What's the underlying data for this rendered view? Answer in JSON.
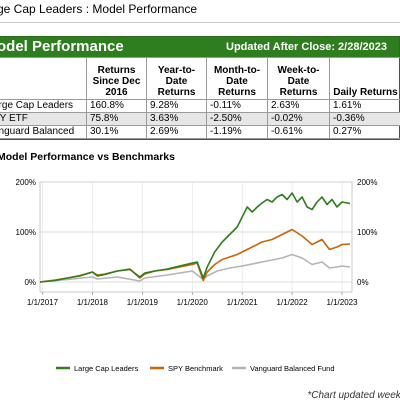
{
  "breadcrumb": "ge Cap Leaders : Model Performance",
  "performance": {
    "title": "odel Performance",
    "updated": "Updated After Close:  2/28/2023",
    "headers": [
      "",
      "Returns Since Dec 2016",
      "Year-to-Date Returns",
      "Month-to-Date Returns",
      "Week-to-Date Returns",
      "Daily Returns"
    ],
    "rows": [
      {
        "name": "arge Cap Leaders",
        "values": [
          "160.8%",
          "9.28%",
          "-0.11%",
          "2.63%",
          "1.61%"
        ]
      },
      {
        "name": "PY ETF",
        "values": [
          "75.8%",
          "3.63%",
          "-2.50%",
          "-0.02%",
          "-0.36%"
        ]
      },
      {
        "name": "anguard Balanced",
        "values": [
          "30.1%",
          "2.69%",
          "-1.19%",
          "-0.61%",
          "0.27%"
        ]
      }
    ]
  },
  "chart_title": "Model Performance vs Benchmarks",
  "footnote": "*Chart updated weekly",
  "chart_data": {
    "type": "line",
    "x_ticks": [
      "1/1/2017",
      "1/1/2018",
      "1/1/2019",
      "1/1/2020",
      "1/1/2021",
      "1/1/2022",
      "1/1/2023"
    ],
    "y_ticks": [
      "0%",
      "100%",
      "200%"
    ],
    "ylim": [
      -20,
      200
    ],
    "grid": true,
    "legend_position": "bottom",
    "series": [
      {
        "name": "Large Cap Leaders",
        "color": "#2e7d1e",
        "x": [
          2016.95,
          2017.25,
          2017.5,
          2017.75,
          2018.0,
          2018.1,
          2018.25,
          2018.5,
          2018.75,
          2018.95,
          2019.05,
          2019.25,
          2019.5,
          2019.75,
          2020.0,
          2020.1,
          2020.22,
          2020.3,
          2020.45,
          2020.6,
          2020.75,
          2020.9,
          2021.0,
          2021.1,
          2021.2,
          2021.3,
          2021.4,
          2021.5,
          2021.6,
          2021.7,
          2021.8,
          2021.9,
          2022.0,
          2022.1,
          2022.2,
          2022.3,
          2022.4,
          2022.5,
          2022.6,
          2022.7,
          2022.8,
          2022.9,
          2023.0,
          2023.16
        ],
        "y": [
          0,
          3,
          8,
          12,
          20,
          12,
          15,
          22,
          25,
          10,
          18,
          22,
          26,
          32,
          38,
          40,
          8,
          30,
          60,
          80,
          95,
          110,
          130,
          150,
          140,
          150,
          158,
          165,
          160,
          170,
          175,
          165,
          178,
          160,
          170,
          150,
          145,
          160,
          170,
          155,
          165,
          150,
          160,
          157
        ]
      },
      {
        "name": "SPY Benchmark",
        "color": "#c8640a",
        "x": [
          2016.95,
          2017.25,
          2017.5,
          2017.75,
          2018.0,
          2018.1,
          2018.25,
          2018.5,
          2018.75,
          2018.95,
          2019.05,
          2019.25,
          2019.5,
          2019.75,
          2020.0,
          2020.1,
          2020.22,
          2020.3,
          2020.45,
          2020.6,
          2020.75,
          2020.9,
          2021.0,
          2021.2,
          2021.4,
          2021.6,
          2021.8,
          2022.0,
          2022.2,
          2022.4,
          2022.5,
          2022.6,
          2022.75,
          2022.9,
          2023.0,
          2023.16
        ],
        "y": [
          0,
          4,
          8,
          13,
          20,
          14,
          16,
          22,
          26,
          8,
          16,
          22,
          25,
          30,
          35,
          38,
          3,
          20,
          35,
          45,
          50,
          55,
          60,
          70,
          80,
          85,
          95,
          105,
          92,
          75,
          80,
          85,
          65,
          70,
          75,
          76
        ]
      },
      {
        "name": "Vanguard Balanced Fund",
        "color": "#b4b4b4",
        "x": [
          2016.95,
          2017.5,
          2018.0,
          2018.1,
          2018.5,
          2018.95,
          2019.05,
          2019.5,
          2020.0,
          2020.22,
          2020.3,
          2020.5,
          2020.75,
          2021.0,
          2021.4,
          2021.8,
          2022.0,
          2022.2,
          2022.4,
          2022.6,
          2022.75,
          2022.9,
          2023.0,
          2023.16
        ],
        "y": [
          0,
          5,
          10,
          6,
          10,
          2,
          8,
          14,
          22,
          5,
          12,
          22,
          28,
          32,
          40,
          48,
          55,
          48,
          35,
          40,
          28,
          30,
          32,
          30
        ]
      }
    ]
  }
}
